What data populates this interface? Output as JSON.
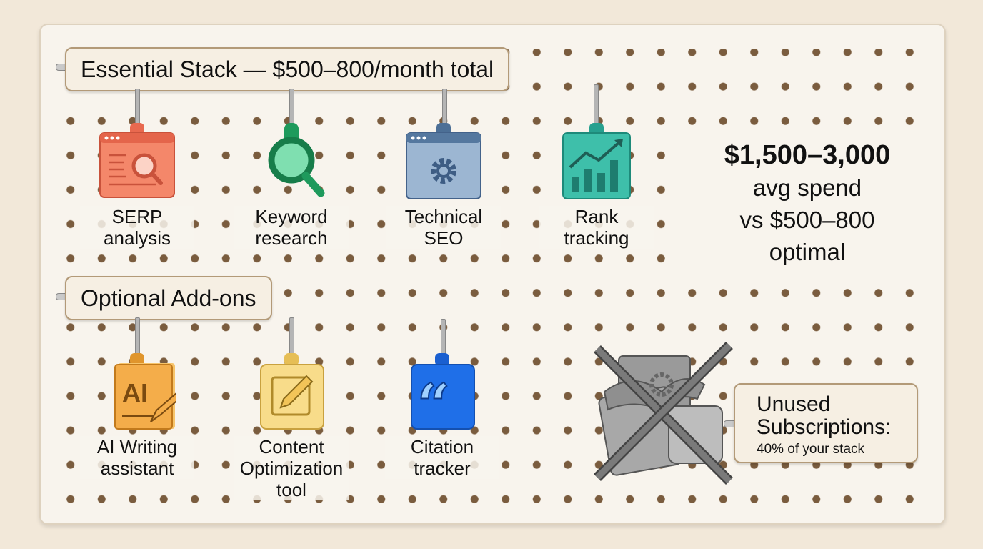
{
  "essential": {
    "title": "Essential Stack — $500–800/month total",
    "tools": [
      {
        "icon": "serp-browser-magnifier-icon",
        "label_1": "SERP",
        "label_2": "analysis",
        "color": "#e8694f"
      },
      {
        "icon": "magnifier-icon",
        "label_1": "Keyword",
        "label_2": "research",
        "color": "#1e9a5c"
      },
      {
        "icon": "browser-gear-icon",
        "label_1": "Technical",
        "label_2": "SEO",
        "color": "#5b7fa6"
      },
      {
        "icon": "bar-chart-trend-icon",
        "label_1": "Rank",
        "label_2": "tracking",
        "color": "#2fb3a0"
      }
    ]
  },
  "optional": {
    "title": "Optional Add-ons",
    "tools": [
      {
        "icon": "ai-document-pencil-icon",
        "label_1": "AI Writing",
        "label_2": "assistant",
        "label_3": "",
        "color": "#f0a53a"
      },
      {
        "icon": "pencil-square-icon",
        "label_1": "Content",
        "label_2": "Optimization",
        "label_3": "tool",
        "color": "#f6d67c"
      },
      {
        "icon": "quote-marks-icon",
        "label_1": "Citation",
        "label_2": "tracker",
        "label_3": "",
        "color": "#1f6fe8"
      }
    ]
  },
  "stat": {
    "line_1": "$1,500–3,000",
    "line_2": "avg spend",
    "line_3": "vs $500–800",
    "line_4": "optimal"
  },
  "unused": {
    "title_1": "Unused",
    "title_2": "Subscriptions:",
    "subtitle": "40% of your stack",
    "icon": "crossed-out-tools-pile-icon"
  }
}
